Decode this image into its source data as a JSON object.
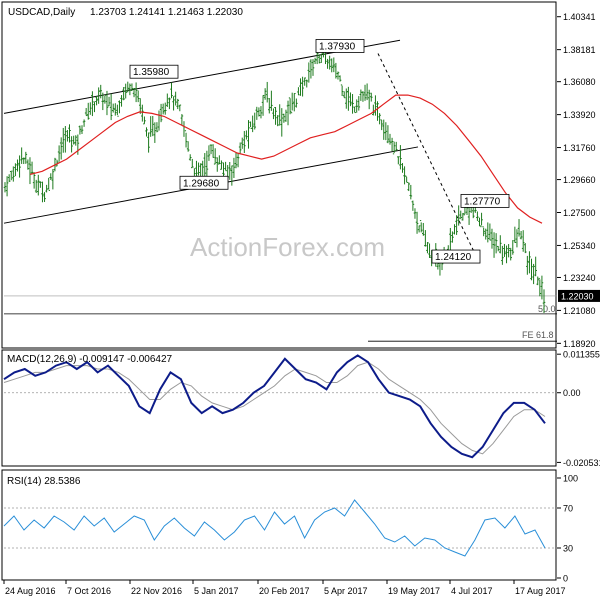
{
  "header": {
    "symbol": "USDCAD,Daily",
    "ohlc": "1.23703 1.24141 1.21463 1.22030"
  },
  "watermark": "ActionForex.com",
  "chart_data": [
    {
      "type": "bar",
      "title": "USDCAD,Daily",
      "ylim": [
        1.1868,
        1.4124
      ],
      "y_ticks": [
        "1.40341",
        "1.38181",
        "1.36080",
        "1.33920",
        "1.31760",
        "1.29660",
        "1.27500",
        "1.25340",
        "1.23240",
        "1.21080",
        "1.18920"
      ],
      "x_ticks": [
        "24 Aug 2016",
        "7 Oct 2016",
        "22 Nov 2016",
        "5 Jan 2017",
        "20 Feb 2017",
        "5 Apr 2017",
        "19 May 2017",
        "4 Jul 2017",
        "17 Aug 2017"
      ],
      "current_price": "1.22030",
      "annotations": [
        {
          "label": "1.35980",
          "value": 1.3598
        },
        {
          "label": "1.37930",
          "value": 1.3793
        },
        {
          "label": "1.29680",
          "value": 1.2968
        },
        {
          "label": "1.27770",
          "value": 1.2777
        },
        {
          "label": "1.24120",
          "value": 1.2412
        }
      ],
      "levels": [
        {
          "label": "50.0",
          "value": 1.2085
        },
        {
          "label": "FE 61.8",
          "value": 1.1906
        }
      ],
      "close_path": [
        1.292,
        1.3,
        1.312,
        1.306,
        1.294,
        1.288,
        1.3,
        1.318,
        1.326,
        1.32,
        1.336,
        1.346,
        1.352,
        1.346,
        1.342,
        1.354,
        1.36,
        1.348,
        1.324,
        1.33,
        1.346,
        1.352,
        1.342,
        1.32,
        1.3,
        1.304,
        1.316,
        1.308,
        1.3,
        1.306,
        1.32,
        1.33,
        1.342,
        1.352,
        1.34,
        1.336,
        1.344,
        1.352,
        1.362,
        1.374,
        1.379,
        1.372,
        1.366,
        1.352,
        1.344,
        1.352,
        1.35,
        1.34,
        1.332,
        1.32,
        1.306,
        1.29,
        1.27,
        1.256,
        1.245,
        1.241,
        1.252,
        1.268,
        1.276,
        1.278,
        1.268,
        1.26,
        1.254,
        1.248,
        1.252,
        1.264,
        1.24,
        1.235,
        1.22
      ],
      "moving_average": [
        1.3,
        1.302,
        1.306,
        1.31,
        1.316,
        1.322,
        1.328,
        1.334,
        1.338,
        1.341,
        1.34,
        1.338,
        1.334,
        1.33,
        1.326,
        1.322,
        1.318,
        1.314,
        1.312,
        1.31,
        1.312,
        1.316,
        1.32,
        1.324,
        1.326,
        1.328,
        1.332,
        1.336,
        1.34,
        1.346,
        1.352,
        1.352,
        1.35,
        1.346,
        1.34,
        1.332,
        1.322,
        1.312,
        1.3,
        1.288,
        1.278,
        1.272,
        1.268
      ],
      "channel_upper": [
        1.34,
        1.388
      ],
      "channel_lower": [
        1.268,
        1.318
      ]
    },
    {
      "type": "line",
      "title": "MACD(12,26,9) -0.009147 -0.006427",
      "ylim": [
        -0.021,
        0.012
      ],
      "y_ticks": [
        "0.011355",
        "0.00",
        "-0.020531"
      ],
      "macd": [
        0.004,
        0.006,
        0.007,
        0.005,
        0.006,
        0.008,
        0.009,
        0.007,
        0.009,
        0.006,
        0.008,
        0.005,
        0.002,
        -0.004,
        -0.006,
        0.001,
        0.006,
        0.004,
        -0.003,
        -0.006,
        -0.004,
        -0.006,
        -0.005,
        -0.003,
        0.0,
        0.002,
        0.006,
        0.01,
        0.007,
        0.004,
        0.003,
        0.001,
        0.006,
        0.009,
        0.011,
        0.009,
        0.004,
        0.0,
        -0.001,
        -0.002,
        -0.004,
        -0.009,
        -0.013,
        -0.016,
        -0.018,
        -0.019,
        -0.016,
        -0.011,
        -0.006,
        -0.003,
        -0.003,
        -0.005,
        -0.009
      ],
      "signal": [
        0.003,
        0.004,
        0.005,
        0.006,
        0.006,
        0.007,
        0.008,
        0.008,
        0.008,
        0.007,
        0.007,
        0.006,
        0.004,
        0.001,
        -0.002,
        -0.002,
        0.001,
        0.003,
        0.002,
        -0.001,
        -0.003,
        -0.004,
        -0.005,
        -0.004,
        -0.002,
        0.0,
        0.002,
        0.005,
        0.007,
        0.006,
        0.005,
        0.003,
        0.003,
        0.005,
        0.008,
        0.009,
        0.007,
        0.004,
        0.002,
        0.0,
        -0.002,
        -0.005,
        -0.009,
        -0.012,
        -0.015,
        -0.017,
        -0.018,
        -0.015,
        -0.011,
        -0.007,
        -0.005,
        -0.005,
        -0.007
      ]
    },
    {
      "type": "line",
      "title": "RSI(14) 28.5386",
      "ylim": [
        0,
        100
      ],
      "y_ticks": [
        "100",
        "70",
        "30",
        "0"
      ],
      "guide_levels": [
        70,
        30
      ],
      "rsi": [
        52,
        62,
        48,
        58,
        50,
        62,
        56,
        48,
        62,
        52,
        60,
        46,
        54,
        62,
        58,
        38,
        52,
        60,
        50,
        42,
        56,
        48,
        38,
        46,
        58,
        62,
        48,
        66,
        54,
        62,
        40,
        58,
        66,
        70,
        62,
        78,
        66,
        54,
        40,
        36,
        42,
        32,
        40,
        38,
        30,
        26,
        22,
        38,
        58,
        60,
        50,
        62,
        44,
        48,
        30
      ]
    }
  ]
}
